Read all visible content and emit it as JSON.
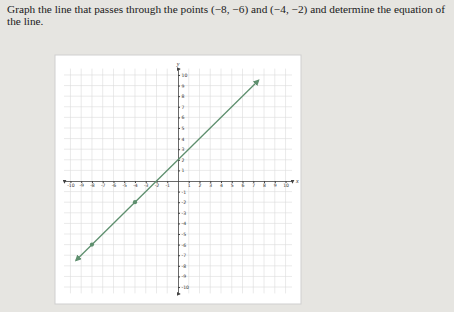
{
  "chart_data": {
    "type": "line",
    "title": "Graph the line that passes through the points (−8, −6) and (−4, −2) and determine the equation of the line.",
    "xlabel": "x",
    "ylabel": "y",
    "xlim": [
      -10.6,
      10.6
    ],
    "ylim": [
      -10.6,
      10.6
    ],
    "xticks": [
      -10,
      -9,
      -8,
      -7,
      -6,
      -5,
      -4,
      -3,
      -2,
      -1,
      1,
      2,
      3,
      4,
      5,
      6,
      7,
      8,
      9,
      10
    ],
    "yticks": [
      -10,
      -9,
      -8,
      -7,
      -6,
      -5,
      -4,
      -3,
      -2,
      -1,
      1,
      2,
      3,
      4,
      5,
      6,
      7,
      8,
      9,
      10
    ],
    "grid": true,
    "series": [
      {
        "type": "line",
        "x": [
          -9.5,
          7.5
        ],
        "values": [
          -7.5,
          9.5
        ],
        "color": "#5e8f6e",
        "line_style": "solid"
      },
      {
        "type": "scatter",
        "x": [
          -8,
          -4
        ],
        "values": [
          -6,
          -2
        ],
        "color": "#5e8f6e",
        "marker": "circle"
      }
    ]
  }
}
